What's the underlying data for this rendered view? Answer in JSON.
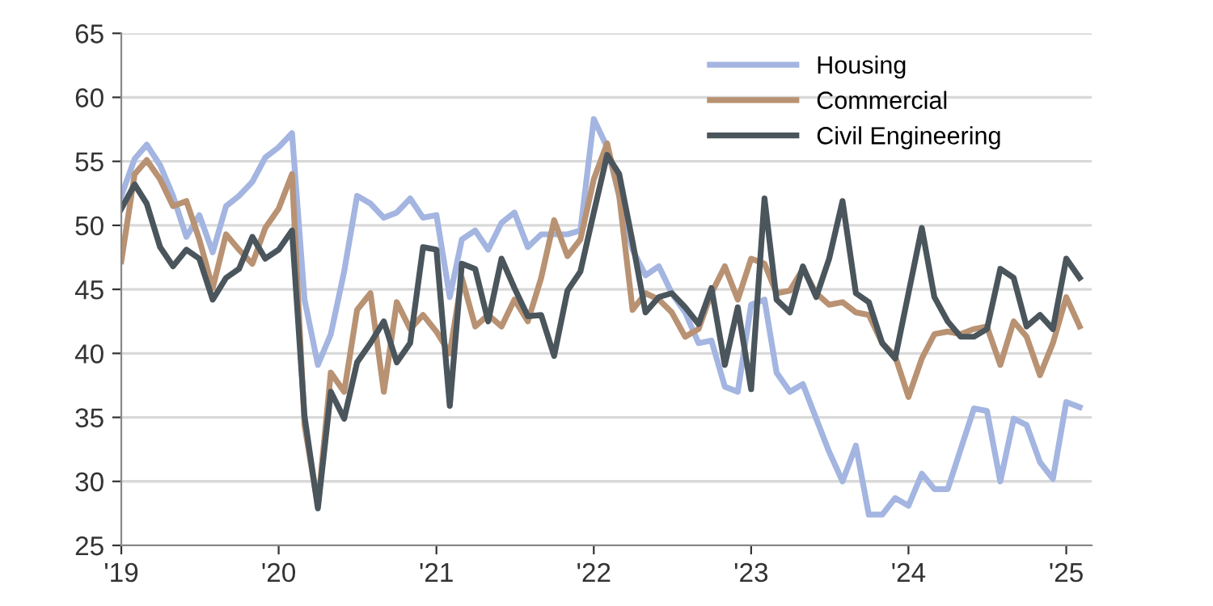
{
  "chart_data": {
    "type": "line",
    "x": [
      "2019-01",
      "2019-02",
      "2019-03",
      "2019-04",
      "2019-05",
      "2019-06",
      "2019-07",
      "2019-08",
      "2019-09",
      "2019-10",
      "2019-11",
      "2019-12",
      "2020-01",
      "2020-02",
      "2020-03",
      "2020-04",
      "2020-05",
      "2020-06",
      "2020-07",
      "2020-08",
      "2020-09",
      "2020-10",
      "2020-11",
      "2020-12",
      "2021-01",
      "2021-02",
      "2021-03",
      "2021-04",
      "2021-05",
      "2021-06",
      "2021-07",
      "2021-08",
      "2021-09",
      "2021-10",
      "2021-11",
      "2021-12",
      "2022-01",
      "2022-02",
      "2022-03",
      "2022-04",
      "2022-05",
      "2022-06",
      "2022-07",
      "2022-08",
      "2022-09",
      "2022-10",
      "2022-11",
      "2022-12",
      "2023-01",
      "2023-02",
      "2023-03",
      "2023-04",
      "2023-05",
      "2023-06",
      "2023-07",
      "2023-08",
      "2023-09",
      "2023-10",
      "2023-11",
      "2023-12",
      "2024-01",
      "2024-02",
      "2024-03",
      "2024-04",
      "2024-05",
      "2024-06",
      "2024-07",
      "2024-08",
      "2024-09",
      "2024-10",
      "2024-11",
      "2024-12",
      "2025-01",
      "2025-02"
    ],
    "series": [
      {
        "name": "Housing",
        "color": "#a3b5e0",
        "values": [
          52.3,
          55.2,
          56.3,
          54.7,
          52.3,
          49.1,
          50.8,
          47.9,
          51.5,
          52.3,
          53.4,
          55.3,
          56.1,
          57.2,
          44.2,
          39.1,
          41.5,
          46.4,
          52.3,
          51.7,
          50.6,
          51.0,
          52.1,
          50.6,
          50.8,
          44.4,
          48.9,
          49.6,
          48.1,
          50.2,
          51.0,
          48.3,
          49.3,
          49.3,
          49.3,
          49.6,
          58.3,
          56.1,
          52.3,
          48.1,
          46.1,
          46.8,
          44.7,
          43.2,
          40.8,
          41.0,
          37.4,
          37.0,
          43.8,
          44.2,
          38.5,
          37.0,
          37.6,
          34.9,
          32.3,
          30.0,
          32.8,
          27.4,
          27.4,
          28.7,
          28.1,
          30.6,
          29.4,
          29.4,
          32.5,
          35.7,
          35.5,
          30.0,
          34.9,
          34.4,
          31.5,
          30.2,
          36.2,
          35.8
        ]
      },
      {
        "name": "Commercial",
        "color": "#b89272",
        "values": [
          47.2,
          54.0,
          55.1,
          53.6,
          51.5,
          51.9,
          48.9,
          45.1,
          49.3,
          48.1,
          47.0,
          49.8,
          51.3,
          54.0,
          34.4,
          28.1,
          38.5,
          37.0,
          43.4,
          44.7,
          37.0,
          44.0,
          41.9,
          43.0,
          41.7,
          40.0,
          45.9,
          42.1,
          43.0,
          42.1,
          44.2,
          42.5,
          45.9,
          50.4,
          47.6,
          48.9,
          53.6,
          56.4,
          52.3,
          43.4,
          44.7,
          44.2,
          43.2,
          41.3,
          41.9,
          44.7,
          46.8,
          44.2,
          47.4,
          47.0,
          44.7,
          44.9,
          46.6,
          44.7,
          43.8,
          44.0,
          43.2,
          43.0,
          40.8,
          39.8,
          36.6,
          39.6,
          41.5,
          41.7,
          41.5,
          41.9,
          42.1,
          39.1,
          42.5,
          41.3,
          38.3,
          40.8,
          44.4,
          42.1
        ]
      },
      {
        "name": "Civil Engineering",
        "color": "#4a555c",
        "values": [
          51.3,
          53.2,
          51.7,
          48.3,
          46.8,
          48.1,
          47.4,
          44.2,
          45.9,
          46.6,
          49.1,
          47.4,
          48.1,
          49.6,
          35.1,
          27.9,
          37.0,
          34.9,
          39.3,
          40.8,
          42.5,
          39.3,
          40.8,
          48.3,
          48.1,
          35.9,
          47.0,
          46.6,
          42.5,
          47.4,
          45.1,
          42.9,
          43.0,
          39.8,
          44.9,
          46.4,
          51.0,
          55.5,
          54.0,
          48.7,
          43.2,
          44.4,
          44.7,
          43.6,
          42.3,
          45.1,
          39.1,
          43.6,
          37.2,
          52.1,
          44.2,
          43.2,
          46.8,
          44.4,
          47.4,
          51.9,
          44.7,
          44.0,
          40.8,
          39.6,
          44.7,
          49.8,
          44.4,
          42.5,
          41.3,
          41.3,
          41.9,
          46.6,
          45.9,
          42.1,
          43.0,
          41.9,
          47.4,
          45.9
        ]
      }
    ],
    "xlim": [
      "2019-01-01",
      "2025-03-01"
    ],
    "xticks": [
      {
        "value": "2019-01-01",
        "label": "'19"
      },
      {
        "value": "2020-01-01",
        "label": "'20"
      },
      {
        "value": "2021-01-01",
        "label": "'21"
      },
      {
        "value": "2022-01-01",
        "label": "'22"
      },
      {
        "value": "2023-01-01",
        "label": "'23"
      },
      {
        "value": "2024-01-01",
        "label": "'24"
      },
      {
        "value": "2025-01-01",
        "label": "'25"
      }
    ],
    "ylim": [
      25,
      65
    ],
    "yticks": [
      25,
      30,
      35,
      40,
      45,
      50,
      55,
      60,
      65
    ],
    "grid": "y",
    "legend": "top right",
    "marker": "none",
    "line_style": "solid"
  }
}
